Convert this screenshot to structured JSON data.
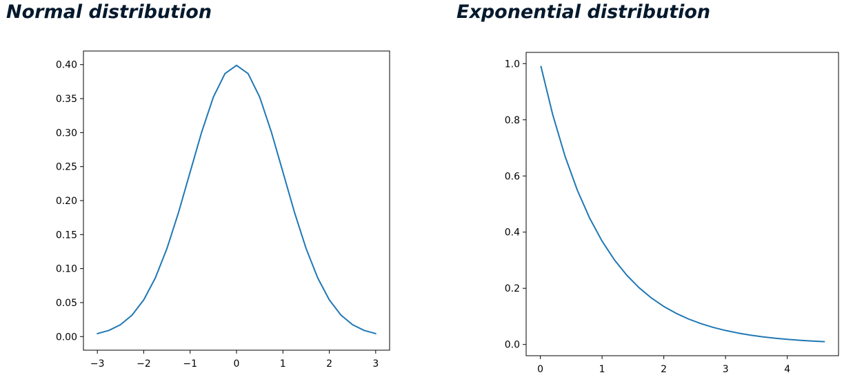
{
  "panels": {
    "normal_title": "Normal distribution",
    "exponential_title": "Exponential distribution"
  },
  "line_color": "#1f77b4",
  "chart_data": [
    {
      "type": "line",
      "title": "",
      "xlabel": "",
      "ylabel": "",
      "xlim": [
        -3.3,
        3.3
      ],
      "ylim": [
        -0.02,
        0.42
      ],
      "x_ticks": [
        -3,
        -2,
        -1,
        0,
        1,
        2,
        3
      ],
      "x_tick_labels": [
        "−3",
        "−2",
        "−1",
        "0",
        "1",
        "2",
        "3"
      ],
      "y_ticks": [
        0.0,
        0.05,
        0.1,
        0.15,
        0.2,
        0.25,
        0.3,
        0.35,
        0.4
      ],
      "y_tick_labels": [
        "0.00",
        "0.05",
        "0.10",
        "0.15",
        "0.20",
        "0.25",
        "0.30",
        "0.35",
        "0.40"
      ],
      "grid": false,
      "series": [
        {
          "x": [
            -3.0,
            -2.75,
            -2.5,
            -2.25,
            -2.0,
            -1.75,
            -1.5,
            -1.25,
            -1.0,
            -0.75,
            -0.5,
            -0.25,
            0.0,
            0.25,
            0.5,
            0.75,
            1.0,
            1.25,
            1.5,
            1.75,
            2.0,
            2.25,
            2.5,
            2.75,
            3.0
          ],
          "y": [
            0.0044,
            0.0091,
            0.0175,
            0.0317,
            0.054,
            0.0863,
            0.1295,
            0.1826,
            0.242,
            0.3011,
            0.3521,
            0.3867,
            0.3989,
            0.3867,
            0.3521,
            0.3011,
            0.242,
            0.1826,
            0.1295,
            0.0863,
            0.054,
            0.0317,
            0.0175,
            0.0091,
            0.0044
          ]
        }
      ]
    },
    {
      "type": "line",
      "title": "",
      "xlabel": "",
      "ylabel": "",
      "xlim": [
        -0.23,
        4.83
      ],
      "ylim": [
        -0.04,
        1.04
      ],
      "x_ticks": [
        0,
        1,
        2,
        3,
        4
      ],
      "x_tick_labels": [
        "0",
        "1",
        "2",
        "3",
        "4"
      ],
      "y_ticks": [
        0.0,
        0.2,
        0.4,
        0.6,
        0.8,
        1.0
      ],
      "y_tick_labels": [
        "0.0",
        "0.2",
        "0.4",
        "0.6",
        "0.8",
        "1.0"
      ],
      "grid": false,
      "series": [
        {
          "x": [
            0.01,
            0.2,
            0.4,
            0.6,
            0.8,
            1.0,
            1.2,
            1.4,
            1.6,
            1.8,
            2.0,
            2.2,
            2.4,
            2.6,
            2.8,
            3.0,
            3.2,
            3.4,
            3.6,
            3.8,
            4.0,
            4.2,
            4.4,
            4.6
          ],
          "y": [
            0.99,
            0.8187,
            0.6703,
            0.5488,
            0.4493,
            0.3679,
            0.3012,
            0.2466,
            0.2019,
            0.1653,
            0.1353,
            0.1108,
            0.0907,
            0.0743,
            0.0608,
            0.0498,
            0.0408,
            0.0334,
            0.0273,
            0.0224,
            0.0183,
            0.015,
            0.0123,
            0.01
          ]
        }
      ]
    }
  ]
}
